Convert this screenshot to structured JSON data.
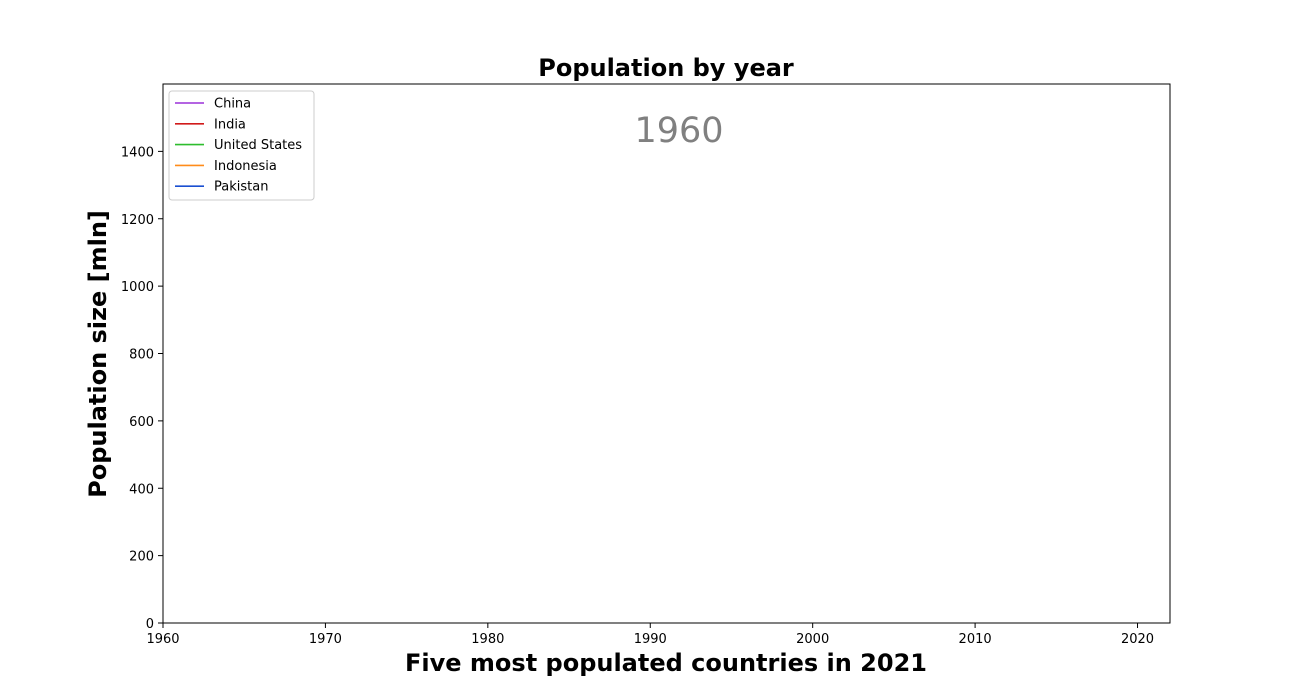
{
  "chart_data": {
    "type": "line",
    "title": "Population by year",
    "xlabel": "Five most populated countries in 2021",
    "ylabel": "Population size [mln]",
    "annotation_year": "1960",
    "xlim": [
      1960,
      2022
    ],
    "ylim": [
      0,
      1600
    ],
    "xticks": [
      1960,
      1970,
      1980,
      1990,
      2000,
      2010,
      2020
    ],
    "yticks": [
      0,
      200,
      400,
      600,
      800,
      1000,
      1200,
      1400
    ],
    "grid": false,
    "legend_position": "top-left",
    "series": [
      {
        "name": "China",
        "color": "#9b30d9",
        "x": [],
        "y": []
      },
      {
        "name": "India",
        "color": "#d11a1a",
        "x": [],
        "y": []
      },
      {
        "name": "United States",
        "color": "#2ebd2e",
        "x": [],
        "y": []
      },
      {
        "name": "Indonesia",
        "color": "#ff8c1a",
        "x": [],
        "y": []
      },
      {
        "name": "Pakistan",
        "color": "#1a4fd1",
        "x": [],
        "y": []
      }
    ]
  }
}
